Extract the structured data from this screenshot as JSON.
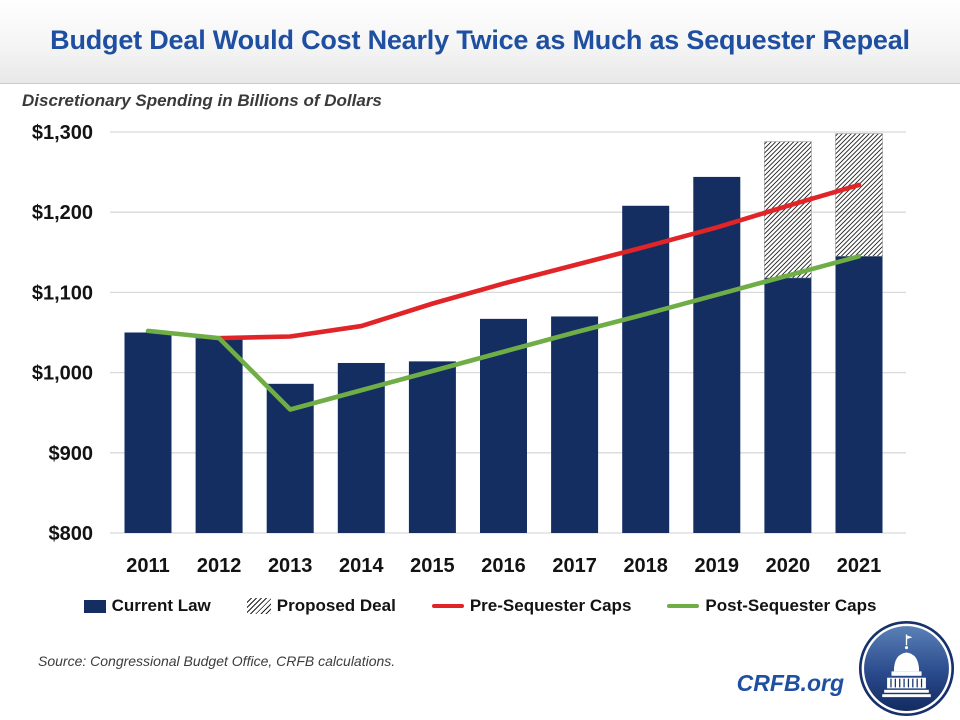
{
  "chart_data": {
    "type": "bar",
    "title": "Budget Deal Would Cost Nearly Twice as Much as Sequester Repeal",
    "subtitle": "Discretionary Spending in Billions of Dollars",
    "categories": [
      "2011",
      "2012",
      "2013",
      "2014",
      "2015",
      "2016",
      "2017",
      "2018",
      "2019",
      "2020",
      "2021"
    ],
    "series": [
      {
        "name": "Current Law",
        "type": "bar",
        "color": "#142e62",
        "values": [
          1050,
          1043,
          986,
          1012,
          1014,
          1067,
          1070,
          1208,
          1244,
          1118,
          1145
        ]
      },
      {
        "name": "Proposed Deal",
        "type": "bar_hatched_extension",
        "style": "black-diagonal-hatch-on-white",
        "values": [
          null,
          null,
          null,
          null,
          null,
          null,
          null,
          null,
          null,
          1288,
          1298
        ]
      },
      {
        "name": "Pre-Sequester Caps",
        "type": "line",
        "color": "#e02428",
        "values": [
          null,
          1043,
          1045,
          1058,
          1086,
          1111,
          1134,
          1157,
          1181,
          1208,
          1234
        ]
      },
      {
        "name": "Post-Sequester Caps",
        "type": "line",
        "color": "#6fad47",
        "values": [
          1052,
          1043,
          954,
          978,
          1002,
          1026,
          1050,
          1073,
          1097,
          1121,
          1145
        ]
      }
    ],
    "xlabel": "",
    "ylabel": "Discretionary Spending in Billions of Dollars",
    "ylim": [
      800,
      1300
    ],
    "yticks": [
      {
        "label": "$800",
        "value": 800
      },
      {
        "label": "$900",
        "value": 900
      },
      {
        "label": "$1,000",
        "value": 1000
      },
      {
        "label": "$1,100",
        "value": 1100
      },
      {
        "label": "$1,200",
        "value": 1200
      },
      {
        "label": "$1,300",
        "value": 1300
      }
    ],
    "grid": true,
    "grid_color": "#d9d9d9",
    "legend_position": "bottom"
  },
  "footer": {
    "source": "Source: Congressional Budget Office, CRFB calculations.",
    "brand": "CRFB.org"
  },
  "colors": {
    "title_blue": "#1e4fa1",
    "bar_navy": "#142e62",
    "pre_sequester_red": "#e02428",
    "post_sequester_green": "#6fad47",
    "logo_navy": "#16316b"
  }
}
